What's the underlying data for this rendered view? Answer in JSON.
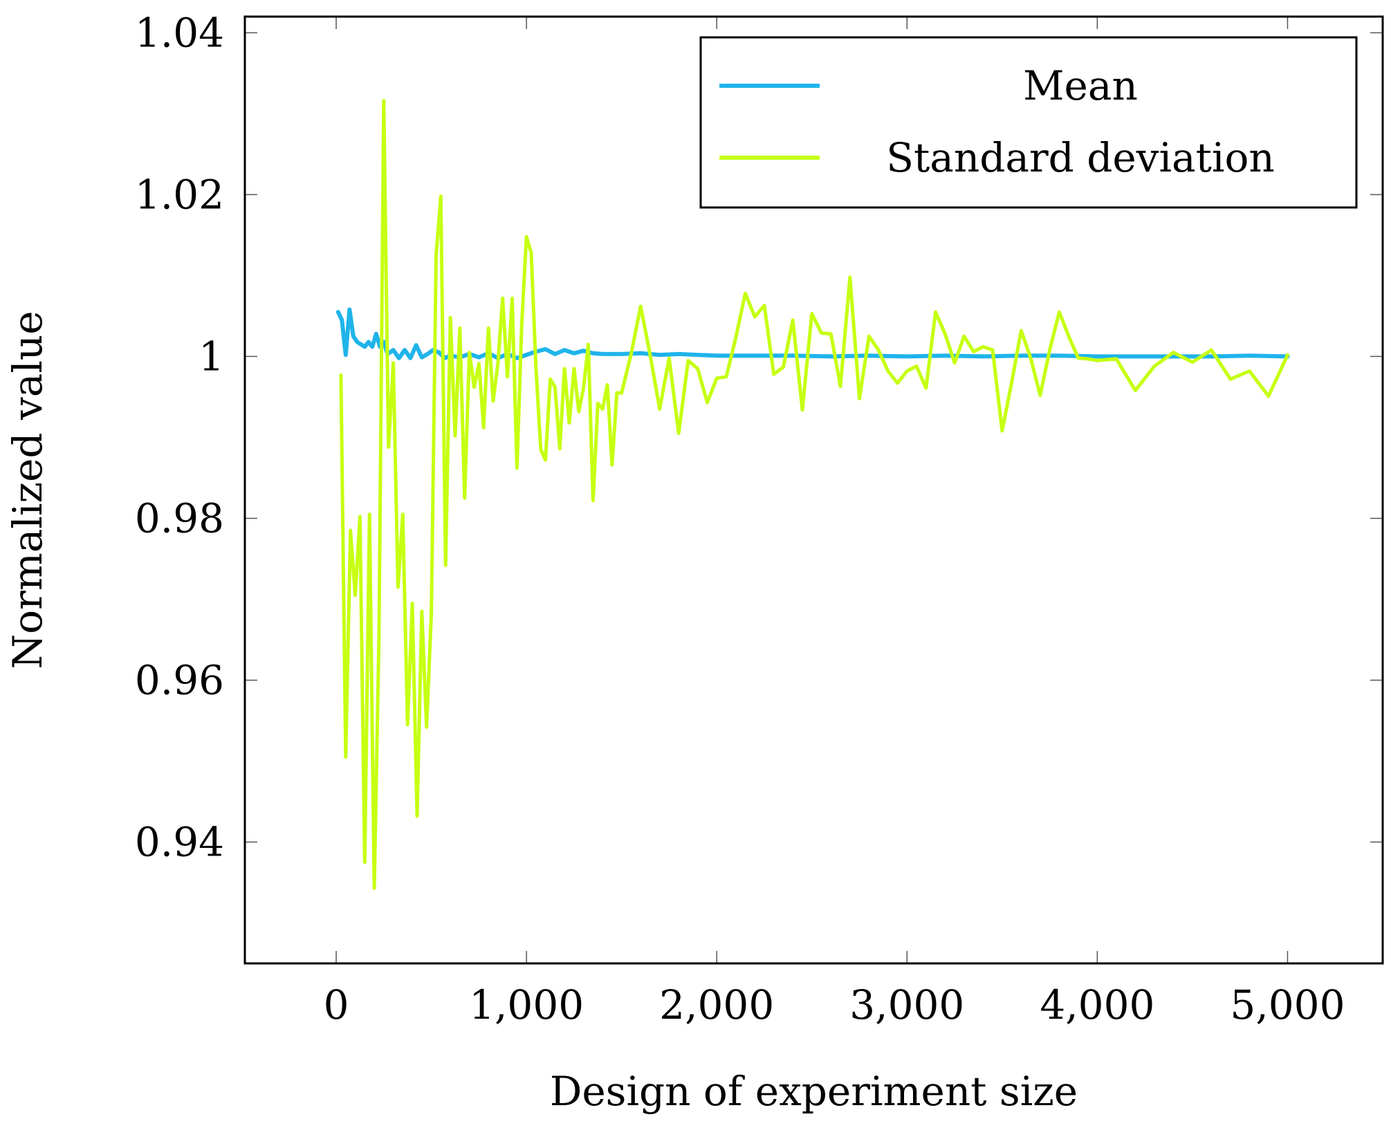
{
  "chart_data": {
    "type": "line",
    "xlabel": "Design of experiment size",
    "ylabel": "Normalized value",
    "xlim": [
      -480,
      5500
    ],
    "ylim": [
      0.925,
      1.042
    ],
    "xticks": [
      0,
      1000,
      2000,
      3000,
      4000,
      5000
    ],
    "xtick_labels": [
      "0",
      "1,000",
      "2,000",
      "3,000",
      "4,000",
      "5,000"
    ],
    "yticks": [
      0.94,
      0.96,
      0.98,
      1.0,
      1.02,
      1.04
    ],
    "ytick_labels": [
      "0.94",
      "0.96",
      "0.98",
      "1",
      "1.02",
      "1.04"
    ],
    "legend_position": "top-right",
    "series": [
      {
        "name": "Mean",
        "color": "#1fb4ea",
        "x": [
          10,
          30,
          50,
          70,
          90,
          110,
          130,
          150,
          170,
          190,
          210,
          230,
          250,
          270,
          300,
          330,
          360,
          390,
          420,
          450,
          480,
          510,
          540,
          570,
          600,
          650,
          700,
          750,
          800,
          850,
          900,
          950,
          1000,
          1050,
          1100,
          1150,
          1200,
          1250,
          1300,
          1350,
          1400,
          1500,
          1600,
          1700,
          1800,
          1900,
          2000,
          2200,
          2400,
          2600,
          2800,
          3000,
          3200,
          3400,
          3600,
          3800,
          4000,
          4200,
          4400,
          4600,
          4800,
          5000
        ],
        "values": [
          1.0055,
          1.0045,
          1.0002,
          1.0058,
          1.0025,
          1.0018,
          1.0015,
          1.0012,
          1.0018,
          1.0012,
          1.0028,
          1.0012,
          1.0018,
          1.0003,
          1.0008,
          0.9998,
          1.0008,
          0.9998,
          1.0014,
          0.9999,
          1.0003,
          1.0008,
          1.0005,
          0.9998,
          1.0001,
          0.9999,
          1.0003,
          0.9999,
          1.0004,
          0.9998,
          1.0003,
          0.9998,
          1.0002,
          1.0006,
          1.0009,
          1.0003,
          1.0008,
          1.0004,
          1.0007,
          1.0004,
          1.0003,
          1.0003,
          1.0004,
          1.0002,
          1.0003,
          1.0002,
          1.0001,
          1.0001,
          1.0001,
          1.0,
          1.0001,
          1.0,
          1.0001,
          1.0,
          1.0001,
          1.0001,
          1.0,
          1.0,
          1.0,
          1.0,
          1.0001,
          1.0
        ]
      },
      {
        "name": "Standard deviation",
        "color": "#c6ff12",
        "x": [
          25,
          50,
          75,
          100,
          125,
          150,
          175,
          200,
          225,
          250,
          275,
          300,
          325,
          350,
          375,
          400,
          425,
          450,
          475,
          500,
          525,
          550,
          575,
          600,
          625,
          650,
          675,
          700,
          725,
          750,
          775,
          800,
          825,
          850,
          875,
          900,
          925,
          950,
          975,
          1000,
          1025,
          1050,
          1075,
          1100,
          1125,
          1150,
          1175,
          1200,
          1225,
          1250,
          1275,
          1300,
          1325,
          1350,
          1375,
          1400,
          1425,
          1450,
          1475,
          1500,
          1550,
          1600,
          1650,
          1700,
          1750,
          1800,
          1850,
          1900,
          1950,
          2000,
          2050,
          2100,
          2150,
          2200,
          2250,
          2300,
          2350,
          2400,
          2450,
          2500,
          2550,
          2600,
          2650,
          2700,
          2750,
          2800,
          2850,
          2900,
          2950,
          3000,
          3050,
          3100,
          3150,
          3200,
          3250,
          3300,
          3350,
          3400,
          3450,
          3500,
          3550,
          3600,
          3650,
          3700,
          3750,
          3800,
          3850,
          3900,
          3950,
          4000,
          4100,
          4200,
          4300,
          4400,
          4500,
          4600,
          4700,
          4800,
          4900,
          5000
        ],
        "values": [
          0.9977,
          0.9505,
          0.9785,
          0.9705,
          0.9802,
          0.9375,
          0.9805,
          0.9343,
          0.9655,
          1.0316,
          0.9888,
          0.9992,
          0.9715,
          0.9805,
          0.9545,
          0.9695,
          0.9432,
          0.9685,
          0.9542,
          0.9682,
          1.0125,
          1.0198,
          0.9742,
          1.0048,
          0.9902,
          1.0035,
          0.9825,
          1.0005,
          0.9962,
          0.9991,
          0.9912,
          1.0035,
          0.9945,
          0.9992,
          1.0072,
          0.9975,
          1.0072,
          0.9862,
          1.0038,
          1.0148,
          1.0128,
          0.9985,
          0.9885,
          0.9872,
          0.9972,
          0.9962,
          0.9886,
          0.9985,
          0.9918,
          0.9985,
          0.9932,
          0.9961,
          1.0015,
          0.9822,
          0.9942,
          0.9935,
          0.9965,
          0.9866,
          0.9955,
          0.9955,
          1.0003,
          1.0062,
          1.0002,
          0.9935,
          0.9998,
          0.9905,
          0.9995,
          0.9985,
          0.9943,
          0.9973,
          0.9975,
          1.0023,
          1.0078,
          1.0049,
          1.0063,
          0.9978,
          0.9987,
          1.0045,
          0.9934,
          1.0053,
          1.0029,
          1.0028,
          0.9963,
          1.0098,
          0.9948,
          1.0025,
          1.0008,
          0.9982,
          0.9967,
          0.9982,
          0.9988,
          0.9961,
          1.0055,
          1.0028,
          0.9992,
          1.0025,
          1.0006,
          1.0012,
          1.0008,
          0.9908,
          0.9968,
          1.0032,
          0.9998,
          0.9952,
          1.0008,
          1.0055,
          1.0025,
          0.9998,
          0.9997,
          0.9995,
          0.9997,
          0.9958,
          0.9988,
          1.0005,
          0.9993,
          1.0008,
          0.9972,
          0.9982,
          0.9951,
          1.0002
        ]
      }
    ]
  }
}
